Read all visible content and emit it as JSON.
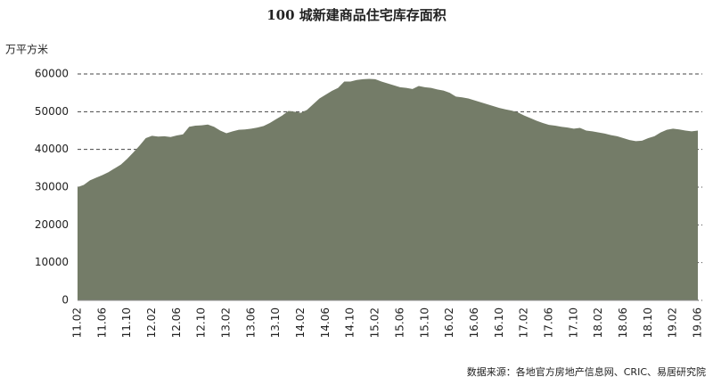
{
  "chart_data": {
    "type": "area",
    "title": "100 城新建商品住宅库存面积",
    "y_label": "万平方米",
    "source": "数据来源：各地官方房地产信息网、CRIC、易居研究院",
    "color": "#747c68",
    "grid": true,
    "ylim": [
      0,
      60000
    ],
    "yticks": [
      0,
      10000,
      20000,
      30000,
      40000,
      50000,
      60000
    ],
    "categories": [
      "11.02",
      null,
      null,
      null,
      "11.06",
      null,
      null,
      null,
      "11.10",
      null,
      null,
      null,
      "12.02",
      null,
      null,
      null,
      "12.06",
      null,
      null,
      null,
      "12.10",
      null,
      null,
      null,
      "13.02",
      null,
      null,
      null,
      "13.06",
      null,
      null,
      null,
      "13.10",
      null,
      null,
      null,
      "14.02",
      null,
      null,
      null,
      "14.06",
      null,
      null,
      null,
      "14.10",
      null,
      null,
      null,
      "15.02",
      null,
      null,
      null,
      "15.06",
      null,
      null,
      null,
      "15.10",
      null,
      null,
      null,
      "16.02",
      null,
      null,
      null,
      "16.06",
      null,
      null,
      null,
      "16.10",
      null,
      null,
      null,
      "17.02",
      null,
      null,
      null,
      "17.06",
      null,
      null,
      null,
      "17.10",
      null,
      null,
      null,
      "18.02",
      null,
      null,
      null,
      "18.06",
      null,
      null,
      null,
      "18.10",
      null,
      null,
      null,
      "19.02",
      null,
      null,
      null,
      "19.06"
    ],
    "values": [
      30000,
      30600,
      31800,
      32500,
      33200,
      34000,
      35000,
      36000,
      37500,
      39200,
      41000,
      43000,
      43600,
      43400,
      43500,
      43300,
      43700,
      44000,
      46000,
      46300,
      46400,
      46600,
      46000,
      45000,
      44300,
      44800,
      45200,
      45300,
      45500,
      45800,
      46200,
      47000,
      48000,
      49000,
      50200,
      50000,
      49700,
      50500,
      52000,
      53500,
      54500,
      55500,
      56300,
      58000,
      58000,
      58400,
      58600,
      58700,
      58600,
      58000,
      57500,
      57000,
      56500,
      56300,
      56000,
      56800,
      56500,
      56300,
      55900,
      55600,
      55000,
      54000,
      53800,
      53500,
      53000,
      52500,
      52000,
      51500,
      51000,
      50600,
      50300,
      49800,
      49000,
      48300,
      47600,
      47000,
      46500,
      46300,
      46000,
      45800,
      45500,
      45700,
      45000,
      44800,
      44500,
      44200,
      43800,
      43500,
      43000,
      42500,
      42200,
      42300,
      43000,
      43500,
      44500,
      45200,
      45500,
      45300,
      45000,
      44800,
      45000
    ]
  }
}
